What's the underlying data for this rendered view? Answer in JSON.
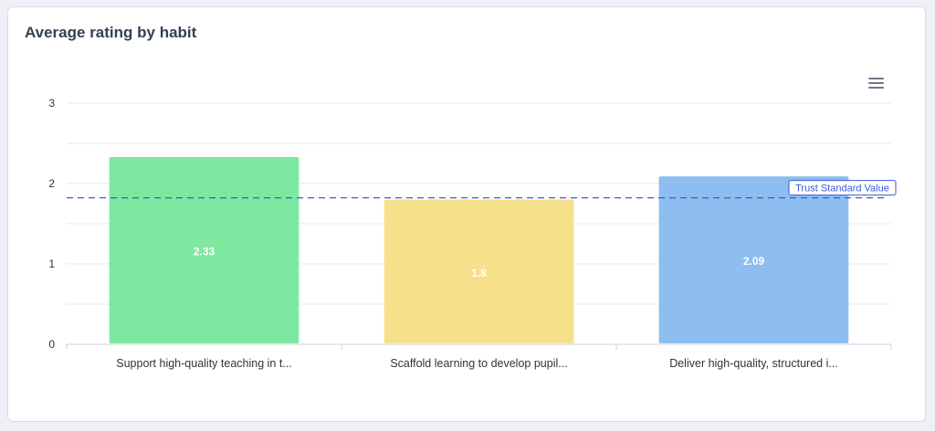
{
  "chart_data": {
    "type": "bar",
    "title": "Average rating by habit",
    "categories": [
      "Support high-quality teaching in t...",
      "Scaffold learning to develop pupil...",
      "Deliver high-quality, structured i..."
    ],
    "values": [
      2.33,
      1.8,
      2.09
    ],
    "data_labels": [
      "2.33",
      "1.8",
      "2.09"
    ],
    "bar_colors": [
      "#7de89f",
      "#f7e08a",
      "#8ebeef"
    ],
    "xlabel": "",
    "ylabel": "",
    "ylim": [
      0,
      3
    ],
    "yticks": [
      0,
      1,
      2,
      3
    ],
    "grid": true,
    "reference_line": {
      "label": "Trust Standard Value",
      "value": 1.8,
      "color": "#3a5bd9"
    }
  },
  "toolbar": {
    "menu_icon": "hamburger-menu-icon"
  }
}
